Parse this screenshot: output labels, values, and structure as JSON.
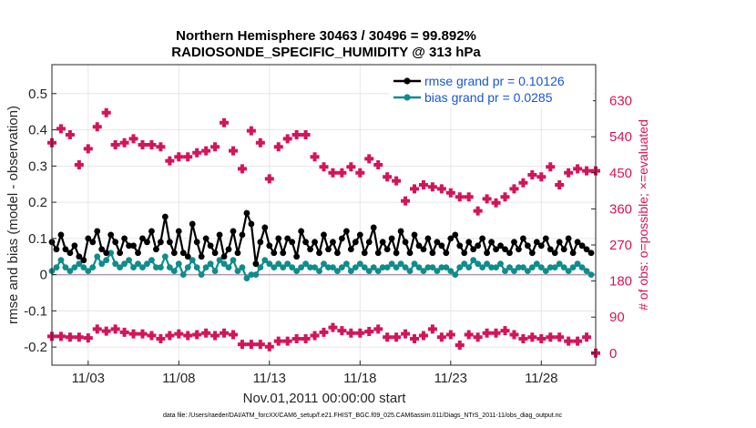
{
  "chart_data": {
    "type": "line",
    "title": "Northern Hemisphere 30463 / 30496 = 99.892%",
    "subtitle": "RADIOSONDE_SPECIFIC_HUMIDITY @ 313 hPa",
    "xlabel": "Nov.01,2011 00:00:00 start",
    "ylabel": "rmse and bias (model - observation)",
    "ylabel_right": "# of obs: o=possible; ×=evaluated",
    "xlim": [
      1,
      31
    ],
    "ylim": [
      -0.25,
      0.58
    ],
    "ylim_right": [
      -30,
      720
    ],
    "grid": true,
    "x_tick_values": [
      3,
      8,
      13,
      18,
      23,
      28
    ],
    "x_tick_labels": [
      "11/03",
      "11/08",
      "11/13",
      "11/18",
      "11/23",
      "11/28"
    ],
    "y_tick_values": [
      -0.2,
      -0.1,
      0,
      0.1,
      0.2,
      0.3,
      0.4,
      0.5
    ],
    "y_tick_labels": [
      "-0.2",
      "-0.1",
      "0",
      "0.1",
      "0.2",
      "0.3",
      "0.4",
      "0.5"
    ],
    "y_right_tick_values": [
      0,
      90,
      180,
      270,
      360,
      450,
      540,
      630
    ],
    "y_right_tick_labels": [
      "0",
      "90",
      "180",
      "270",
      "360",
      "450",
      "540",
      "630"
    ],
    "legend": {
      "position": "top-right",
      "entries": [
        "rmse grand pr = 0.10126",
        "bias grand pr = 0.0285"
      ]
    },
    "colors": {
      "rmse": "#000000",
      "bias": "#0f8c8c",
      "obs": "#d4145a",
      "zero_line": "#b09ab0"
    },
    "series": [
      {
        "name": "rmse",
        "x": [
          1.0,
          1.25,
          1.5,
          1.75,
          2.0,
          2.25,
          2.5,
          2.75,
          3.0,
          3.25,
          3.5,
          3.75,
          4.0,
          4.25,
          4.5,
          4.75,
          5.0,
          5.25,
          5.5,
          5.75,
          6.0,
          6.25,
          6.5,
          6.75,
          7.0,
          7.25,
          7.5,
          7.75,
          8.0,
          8.25,
          8.5,
          8.75,
          9.0,
          9.25,
          9.5,
          9.75,
          10.0,
          10.25,
          10.5,
          10.75,
          11.0,
          11.25,
          11.5,
          11.75,
          12.0,
          12.25,
          12.5,
          12.75,
          13.0,
          13.25,
          13.5,
          13.75,
          14.0,
          14.25,
          14.5,
          14.75,
          15.0,
          15.25,
          15.5,
          15.75,
          16.0,
          16.25,
          16.5,
          16.75,
          17.0,
          17.25,
          17.5,
          17.75,
          18.0,
          18.25,
          18.5,
          18.75,
          19.0,
          19.25,
          19.5,
          19.75,
          20.0,
          20.25,
          20.5,
          20.75,
          21.0,
          21.25,
          21.5,
          21.75,
          22.0,
          22.25,
          22.5,
          22.75,
          23.0,
          23.25,
          23.5,
          23.75,
          24.0,
          24.25,
          24.5,
          24.75,
          25.0,
          25.25,
          25.5,
          25.75,
          26.0,
          26.25,
          26.5,
          26.75,
          27.0,
          27.25,
          27.5,
          27.75,
          28.0,
          28.25,
          28.5,
          28.75,
          29.0,
          29.25,
          29.5,
          29.75,
          30.0,
          30.25,
          30.5,
          30.75
        ],
        "values": [
          0.09,
          0.07,
          0.11,
          0.07,
          0.06,
          0.08,
          0.05,
          0.04,
          0.1,
          0.09,
          0.12,
          0.07,
          0.06,
          0.11,
          0.09,
          0.06,
          0.1,
          0.08,
          0.08,
          0.06,
          0.1,
          0.09,
          0.12,
          0.07,
          0.09,
          0.16,
          0.09,
          0.06,
          0.12,
          0.06,
          0.05,
          0.14,
          0.09,
          0.05,
          0.1,
          0.08,
          0.06,
          0.11,
          0.05,
          0.07,
          0.12,
          0.06,
          0.11,
          0.17,
          0.14,
          0.03,
          0.09,
          0.13,
          0.08,
          0.06,
          0.1,
          0.06,
          0.1,
          0.09,
          0.05,
          0.12,
          0.09,
          0.07,
          0.09,
          0.06,
          0.11,
          0.07,
          0.09,
          0.06,
          0.1,
          0.12,
          0.07,
          0.09,
          0.11,
          0.06,
          0.09,
          0.13,
          0.06,
          0.09,
          0.07,
          0.1,
          0.06,
          0.12,
          0.09,
          0.06,
          0.11,
          0.08,
          0.07,
          0.1,
          0.06,
          0.09,
          0.08,
          0.06,
          0.1,
          0.11,
          0.08,
          0.06,
          0.09,
          0.07,
          0.08,
          0.1,
          0.06,
          0.09,
          0.07,
          0.08,
          0.07,
          0.06,
          0.09,
          0.07,
          0.1,
          0.08,
          0.06,
          0.09,
          0.08,
          0.1,
          0.07,
          0.06,
          0.09,
          0.07,
          0.1,
          0.06,
          0.09,
          0.08,
          0.07,
          0.06
        ]
      },
      {
        "name": "bias",
        "x": [
          1.0,
          1.25,
          1.5,
          1.75,
          2.0,
          2.25,
          2.5,
          2.75,
          3.0,
          3.25,
          3.5,
          3.75,
          4.0,
          4.25,
          4.5,
          4.75,
          5.0,
          5.25,
          5.5,
          5.75,
          6.0,
          6.25,
          6.5,
          6.75,
          7.0,
          7.25,
          7.5,
          7.75,
          8.0,
          8.25,
          8.5,
          8.75,
          9.0,
          9.25,
          9.5,
          9.75,
          10.0,
          10.25,
          10.5,
          10.75,
          11.0,
          11.25,
          11.5,
          11.75,
          12.0,
          12.25,
          12.5,
          12.75,
          13.0,
          13.25,
          13.5,
          13.75,
          14.0,
          14.25,
          14.5,
          14.75,
          15.0,
          15.25,
          15.5,
          15.75,
          16.0,
          16.25,
          16.5,
          16.75,
          17.0,
          17.25,
          17.5,
          17.75,
          18.0,
          18.25,
          18.5,
          18.75,
          19.0,
          19.25,
          19.5,
          19.75,
          20.0,
          20.25,
          20.5,
          20.75,
          21.0,
          21.25,
          21.5,
          21.75,
          22.0,
          22.25,
          22.5,
          22.75,
          23.0,
          23.25,
          23.5,
          23.75,
          24.0,
          24.25,
          24.5,
          24.75,
          25.0,
          25.25,
          25.5,
          25.75,
          26.0,
          26.25,
          26.5,
          26.75,
          27.0,
          27.25,
          27.5,
          27.75,
          28.0,
          28.25,
          28.5,
          28.75,
          29.0,
          29.25,
          29.5,
          29.75,
          30.0,
          30.25,
          30.5,
          30.75
        ],
        "values": [
          0.01,
          0.02,
          0.04,
          0.02,
          0.01,
          0.02,
          0.03,
          0.02,
          0.01,
          0.02,
          0.05,
          0.03,
          0.04,
          0.06,
          0.03,
          0.02,
          0.03,
          0.04,
          0.02,
          0.03,
          0.02,
          0.03,
          0.04,
          0.02,
          0.02,
          0.05,
          0.02,
          0.01,
          0.03,
          0.0,
          0.02,
          0.04,
          0.02,
          0.0,
          0.02,
          0.03,
          0.01,
          0.04,
          0.03,
          0.02,
          0.04,
          0.01,
          0.02,
          -0.01,
          0.0,
          0.0,
          0.02,
          0.04,
          0.03,
          0.02,
          0.03,
          0.02,
          0.03,
          0.02,
          0.01,
          0.02,
          0.03,
          0.02,
          0.02,
          0.01,
          0.03,
          0.02,
          0.02,
          0.01,
          0.02,
          0.03,
          0.01,
          0.02,
          0.03,
          0.02,
          0.01,
          0.02,
          0.01,
          0.02,
          0.02,
          0.03,
          0.02,
          0.03,
          0.02,
          0.01,
          0.03,
          0.02,
          0.01,
          0.02,
          0.02,
          0.01,
          0.02,
          0.02,
          0.01,
          0.0,
          0.02,
          0.03,
          0.02,
          0.04,
          0.03,
          0.02,
          0.03,
          0.02,
          0.02,
          0.03,
          0.01,
          0.02,
          0.01,
          0.02,
          0.02,
          0.01,
          0.02,
          0.03,
          0.02,
          0.01,
          0.02,
          0.02,
          0.03,
          0.02,
          0.01,
          0.02,
          0.03,
          0.02,
          0.01,
          0.0
        ]
      },
      {
        "name": "obs_possible",
        "axis": "right",
        "x": [
          1.0,
          1.5,
          2.0,
          2.5,
          3.0,
          3.5,
          4.0,
          4.5,
          5.0,
          5.5,
          6.0,
          6.5,
          7.0,
          7.5,
          8.0,
          8.5,
          9.0,
          9.5,
          10.0,
          10.5,
          11.0,
          11.5,
          12.0,
          12.5,
          13.0,
          13.5,
          14.0,
          14.5,
          15.0,
          15.5,
          16.0,
          16.5,
          17.0,
          17.5,
          18.0,
          18.5,
          19.0,
          19.5,
          20.0,
          20.5,
          21.0,
          21.5,
          22.0,
          22.5,
          23.0,
          23.5,
          24.0,
          24.5,
          25.0,
          25.5,
          26.0,
          26.5,
          27.0,
          27.5,
          28.0,
          28.5,
          29.0,
          29.5,
          30.0,
          30.5,
          31.0
        ],
        "values": [
          525,
          560,
          545,
          470,
          510,
          565,
          600,
          520,
          525,
          535,
          520,
          520,
          515,
          480,
          490,
          490,
          500,
          505,
          515,
          575,
          505,
          460,
          555,
          525,
          435,
          515,
          535,
          545,
          545,
          490,
          465,
          450,
          450,
          465,
          450,
          485,
          470,
          440,
          430,
          380,
          410,
          420,
          415,
          410,
          400,
          390,
          390,
          355,
          385,
          375,
          390,
          410,
          425,
          445,
          440,
          465,
          420,
          450,
          460,
          455,
          455
        ]
      },
      {
        "name": "obs_evaluated",
        "axis": "right",
        "x": [
          1.0,
          1.5,
          2.0,
          2.5,
          3.0,
          3.5,
          4.0,
          4.5,
          5.0,
          5.5,
          6.0,
          6.5,
          7.0,
          7.5,
          8.0,
          8.5,
          9.0,
          9.5,
          10.0,
          10.5,
          11.0,
          11.5,
          12.0,
          12.5,
          13.0,
          13.5,
          14.0,
          14.5,
          15.0,
          15.5,
          16.0,
          16.5,
          17.0,
          17.5,
          18.0,
          18.5,
          19.0,
          19.5,
          20.0,
          20.5,
          21.0,
          21.5,
          22.0,
          22.5,
          23.0,
          23.5,
          24.0,
          24.5,
          25.0,
          25.5,
          26.0,
          26.5,
          27.0,
          27.5,
          28.0,
          28.5,
          29.0,
          29.5,
          30.0,
          30.5,
          31.0
        ],
        "values": [
          42,
          42,
          40,
          40,
          38,
          60,
          55,
          60,
          52,
          48,
          48,
          44,
          36,
          44,
          48,
          44,
          46,
          50,
          44,
          50,
          46,
          22,
          22,
          22,
          16,
          30,
          30,
          36,
          36,
          44,
          52,
          64,
          56,
          50,
          50,
          54,
          60,
          40,
          40,
          48,
          36,
          44,
          60,
          40,
          46,
          20,
          46,
          40,
          50,
          50,
          56,
          46,
          36,
          40,
          36,
          40,
          40,
          30,
          30,
          40,
          0
        ]
      }
    ],
    "footnote": "data file: /Users/raeder/DAI/ATM_forcXX/CAM6_setup/f.e21.FHIST_BGC.f09_025.CAM6assim.011/Diags_NTrS_2011-11/obs_diag_output.nc"
  }
}
